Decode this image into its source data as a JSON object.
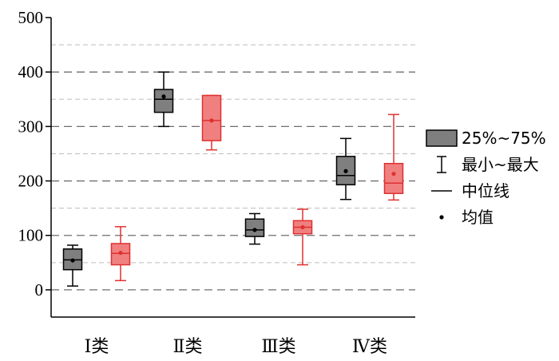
{
  "chart_data": {
    "type": "box",
    "ylim": [
      -50,
      500
    ],
    "yticks": [
      0,
      100,
      200,
      300,
      400,
      500
    ],
    "minor_gridlines": [
      50,
      150,
      250,
      350,
      450
    ],
    "categories": [
      "Ⅰ类",
      "Ⅱ类",
      "Ⅲ类",
      "Ⅳ类"
    ],
    "series": [
      {
        "color": "#7f7f7f",
        "stroke": "#000000",
        "boxes": [
          {
            "min": 7,
            "q1": 37,
            "median": 55,
            "q3": 75,
            "max": 82,
            "mean": 54
          },
          {
            "min": 300,
            "q1": 326,
            "median": 350,
            "q3": 368,
            "max": 400,
            "mean": 355
          },
          {
            "min": 84,
            "q1": 98,
            "median": 110,
            "q3": 130,
            "max": 140,
            "mean": 110
          },
          {
            "min": 166,
            "q1": 193,
            "median": 210,
            "q3": 245,
            "max": 278,
            "mean": 218
          }
        ]
      },
      {
        "color": "#f08080",
        "stroke": "#e03030",
        "boxes": [
          {
            "min": 17,
            "q1": 46,
            "median": 67,
            "q3": 85,
            "max": 116,
            "mean": 68
          },
          {
            "min": 257,
            "q1": 274,
            "median": 311,
            "q3": 357,
            "max": 357,
            "mean": 311
          },
          {
            "min": 46,
            "q1": 103,
            "median": 115,
            "q3": 127,
            "max": 148,
            "mean": 115
          },
          {
            "min": 165,
            "q1": 177,
            "median": 196,
            "q3": 232,
            "max": 322,
            "mean": 213
          }
        ]
      }
    ],
    "legend": {
      "placement": "right",
      "items": [
        {
          "symbol": "box",
          "label": "25%~75%"
        },
        {
          "symbol": "whisker",
          "label": "最小~最大"
        },
        {
          "symbol": "median",
          "label": "中位线"
        },
        {
          "symbol": "mean",
          "label": "均值"
        }
      ]
    }
  }
}
